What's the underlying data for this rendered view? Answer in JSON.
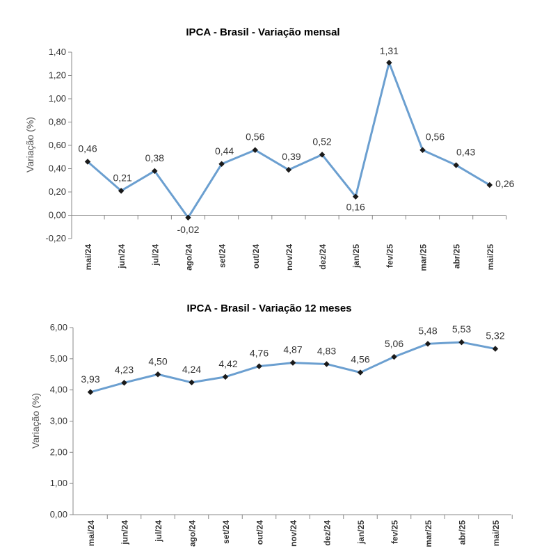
{
  "chart_data": [
    {
      "type": "line",
      "title": "IPCA - Brasil - Variação mensal",
      "xlabel": "",
      "ylabel": "Variação (%)",
      "ylim": [
        -0.2,
        1.4
      ],
      "yticks": [
        "-0,20",
        "0,00",
        "0,20",
        "0,40",
        "0,60",
        "0,80",
        "1,00",
        "1,20",
        "1,40"
      ],
      "categories": [
        "mai/24",
        "jun/24",
        "jul/24",
        "ago/24",
        "set/24",
        "out/24",
        "nov/24",
        "dez/24",
        "jan/25",
        "fev/25",
        "mar/25",
        "abr/25",
        "mai/25"
      ],
      "values": [
        0.46,
        0.21,
        0.38,
        -0.02,
        0.44,
        0.56,
        0.39,
        0.52,
        0.16,
        1.31,
        0.56,
        0.43,
        0.26
      ],
      "labels": [
        "0,46",
        "0,21",
        "0,38",
        "-0,02",
        "0,44",
        "0,56",
        "0,39",
        "0,52",
        "0,16",
        "1,31",
        "0,56",
        "0,43",
        "0,26"
      ],
      "series_color": "#6b9fd0"
    },
    {
      "type": "line",
      "title": "IPCA - Brasil - Variação 12 meses",
      "xlabel": "",
      "ylabel": "Variação (%)",
      "ylim": [
        0,
        6
      ],
      "yticks": [
        "0,00",
        "1,00",
        "2,00",
        "3,00",
        "4,00",
        "5,00",
        "6,00"
      ],
      "categories": [
        "mai/24",
        "jun/24",
        "jul/24",
        "ago/24",
        "set/24",
        "out/24",
        "nov/24",
        "dez/24",
        "jan/25",
        "fev/25",
        "mar/25",
        "abr/25",
        "mai/25"
      ],
      "values": [
        3.93,
        4.23,
        4.5,
        4.24,
        4.42,
        4.76,
        4.87,
        4.83,
        4.56,
        5.06,
        5.48,
        5.53,
        5.32
      ],
      "labels": [
        "3,93",
        "4,23",
        "4,50",
        "4,24",
        "4,42",
        "4,76",
        "4,87",
        "4,83",
        "4,56",
        "5,06",
        "5,48",
        "5,53",
        "5,32"
      ],
      "series_color": "#6b9fd0"
    }
  ]
}
